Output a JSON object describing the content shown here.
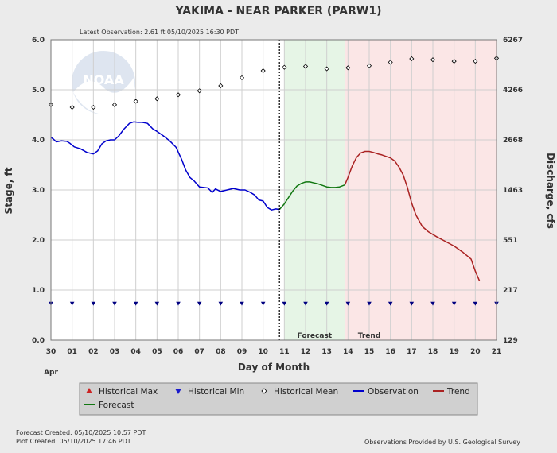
{
  "chart_data": {
    "type": "line",
    "title": "YAKIMA - NEAR PARKER  (PARW1)",
    "subtitle": "Latest Observation: 2.61 ft 05/10/2025 16:30 PDT",
    "xlabel": "Day of Month",
    "ylabel": "Stage, ft",
    "y2label": "Discharge, cfs",
    "month_label": "Apr",
    "xlim": [
      0,
      21
    ],
    "ylim": [
      0,
      6
    ],
    "x_ticks": [
      "30",
      "01",
      "02",
      "03",
      "04",
      "05",
      "06",
      "07",
      "08",
      "09",
      "10",
      "11",
      "12",
      "13",
      "14",
      "15",
      "16",
      "17",
      "18",
      "19",
      "20",
      "21"
    ],
    "y_ticks": [
      "0.0",
      "1.0",
      "2.0",
      "3.0",
      "4.0",
      "5.0",
      "6.0"
    ],
    "y2_ticks": [
      {
        "stage": 0.0,
        "label": "129"
      },
      {
        "stage": 1.0,
        "label": "217"
      },
      {
        "stage": 2.0,
        "label": "551"
      },
      {
        "stage": 3.0,
        "label": "1463"
      },
      {
        "stage": 4.0,
        "label": "2668"
      },
      {
        "stage": 5.0,
        "label": "4266"
      },
      {
        "stage": 6.0,
        "label": "6267"
      }
    ],
    "regions": [
      {
        "label": "Forecast",
        "from": 11.0,
        "to": 13.85,
        "color": "#e6f5e6"
      },
      {
        "label": "Trend",
        "from": 13.85,
        "to": 21.0,
        "color": "#fbe6e6"
      }
    ],
    "now_x": 10.77,
    "grid": true,
    "legend_position": "bottom",
    "series": [
      {
        "name": "Observation",
        "color": "#0000cc",
        "x": [
          0,
          0.1,
          0.25,
          0.5,
          0.75,
          0.9,
          1.1,
          1.4,
          1.7,
          2.0,
          2.2,
          2.4,
          2.6,
          2.8,
          3.0,
          3.2,
          3.45,
          3.7,
          3.9,
          4.1,
          4.3,
          4.55,
          4.8,
          5.0,
          5.3,
          5.6,
          5.9,
          6.15,
          6.35,
          6.55,
          6.75,
          7.0,
          7.2,
          7.4,
          7.6,
          7.75,
          8.0,
          8.3,
          8.6,
          8.9,
          9.15,
          9.4,
          9.6,
          9.8,
          10.0,
          10.2,
          10.4,
          10.6,
          10.77
        ],
        "y": [
          4.05,
          4.02,
          3.96,
          3.98,
          3.97,
          3.93,
          3.86,
          3.82,
          3.75,
          3.72,
          3.78,
          3.92,
          3.98,
          4.0,
          4.0,
          4.08,
          4.22,
          4.33,
          4.36,
          4.35,
          4.35,
          4.33,
          4.22,
          4.17,
          4.08,
          3.98,
          3.85,
          3.62,
          3.4,
          3.25,
          3.18,
          3.06,
          3.05,
          3.04,
          2.95,
          3.02,
          2.97,
          3.0,
          3.03,
          3.0,
          3.0,
          2.95,
          2.9,
          2.8,
          2.78,
          2.65,
          2.6,
          2.62,
          2.61
        ]
      },
      {
        "name": "Forecast",
        "color": "#117711",
        "x": [
          10.77,
          11.0,
          11.2,
          11.4,
          11.6,
          11.8,
          12.0,
          12.2,
          12.4,
          12.6,
          12.8,
          13.0,
          13.2,
          13.4,
          13.6,
          13.85
        ],
        "y": [
          2.61,
          2.72,
          2.85,
          2.98,
          3.08,
          3.13,
          3.16,
          3.16,
          3.14,
          3.12,
          3.09,
          3.06,
          3.05,
          3.05,
          3.06,
          3.1
        ]
      },
      {
        "name": "Trend",
        "color": "#aa2222",
        "x": [
          13.85,
          14.0,
          14.2,
          14.4,
          14.6,
          14.8,
          15.0,
          15.2,
          15.4,
          15.6,
          15.8,
          16.0,
          16.2,
          16.4,
          16.6,
          16.8,
          17.0,
          17.2,
          17.5,
          17.8,
          18.2,
          18.6,
          19.0,
          19.4,
          19.8,
          20.0,
          20.2
        ],
        "y": [
          3.1,
          3.25,
          3.48,
          3.65,
          3.74,
          3.77,
          3.77,
          3.75,
          3.72,
          3.7,
          3.67,
          3.64,
          3.58,
          3.46,
          3.3,
          3.05,
          2.74,
          2.5,
          2.27,
          2.16,
          2.06,
          1.97,
          1.88,
          1.76,
          1.62,
          1.38,
          1.18
        ]
      },
      {
        "name": "Historical Mean",
        "color": "#000000",
        "marker": "diamond",
        "x": [
          0,
          1,
          2,
          3,
          4,
          5,
          6,
          7,
          8,
          9,
          10,
          11,
          12,
          13,
          14,
          15,
          16,
          17,
          18,
          19,
          20,
          21
        ],
        "y": [
          4.7,
          4.65,
          4.65,
          4.7,
          4.77,
          4.82,
          4.9,
          4.98,
          5.08,
          5.24,
          5.38,
          5.45,
          5.47,
          5.42,
          5.44,
          5.48,
          5.55,
          5.62,
          5.6,
          5.57,
          5.57,
          5.63
        ]
      },
      {
        "name": "Historical Min",
        "color": "#000080",
        "marker": "triangle-down",
        "x": [
          0,
          1,
          2,
          3,
          4,
          5,
          6,
          7,
          8,
          9,
          10,
          11,
          12,
          13,
          14,
          15,
          16,
          17,
          18,
          19,
          20,
          21
        ],
        "y": [
          0.73,
          0.73,
          0.73,
          0.73,
          0.73,
          0.73,
          0.73,
          0.73,
          0.73,
          0.73,
          0.73,
          0.73,
          0.73,
          0.73,
          0.73,
          0.73,
          0.73,
          0.73,
          0.73,
          0.73,
          0.73,
          0.73
        ]
      }
    ]
  },
  "legend": [
    {
      "name": "Historical Max",
      "symbol": "triangle-up",
      "color": "#cc2222"
    },
    {
      "name": "Historical Min",
      "symbol": "triangle-down",
      "color": "#1a1acc"
    },
    {
      "name": "Historical Mean",
      "symbol": "diamond",
      "color": "#000000"
    },
    {
      "name": "Observation",
      "symbol": "line",
      "color": "#0000cc"
    },
    {
      "name": "Trend",
      "symbol": "line",
      "color": "#aa2222"
    },
    {
      "name": "Forecast",
      "symbol": "line",
      "color": "#117711"
    }
  ],
  "logo": {
    "text": "NOAA"
  },
  "footer": {
    "forecast_created": "Forecast Created: 05/10/2025 10:57 PDT",
    "plot_created": "Plot Created: 05/10/2025 17:46 PDT",
    "credit": "Observations Provided by U.S. Geological Survey"
  }
}
